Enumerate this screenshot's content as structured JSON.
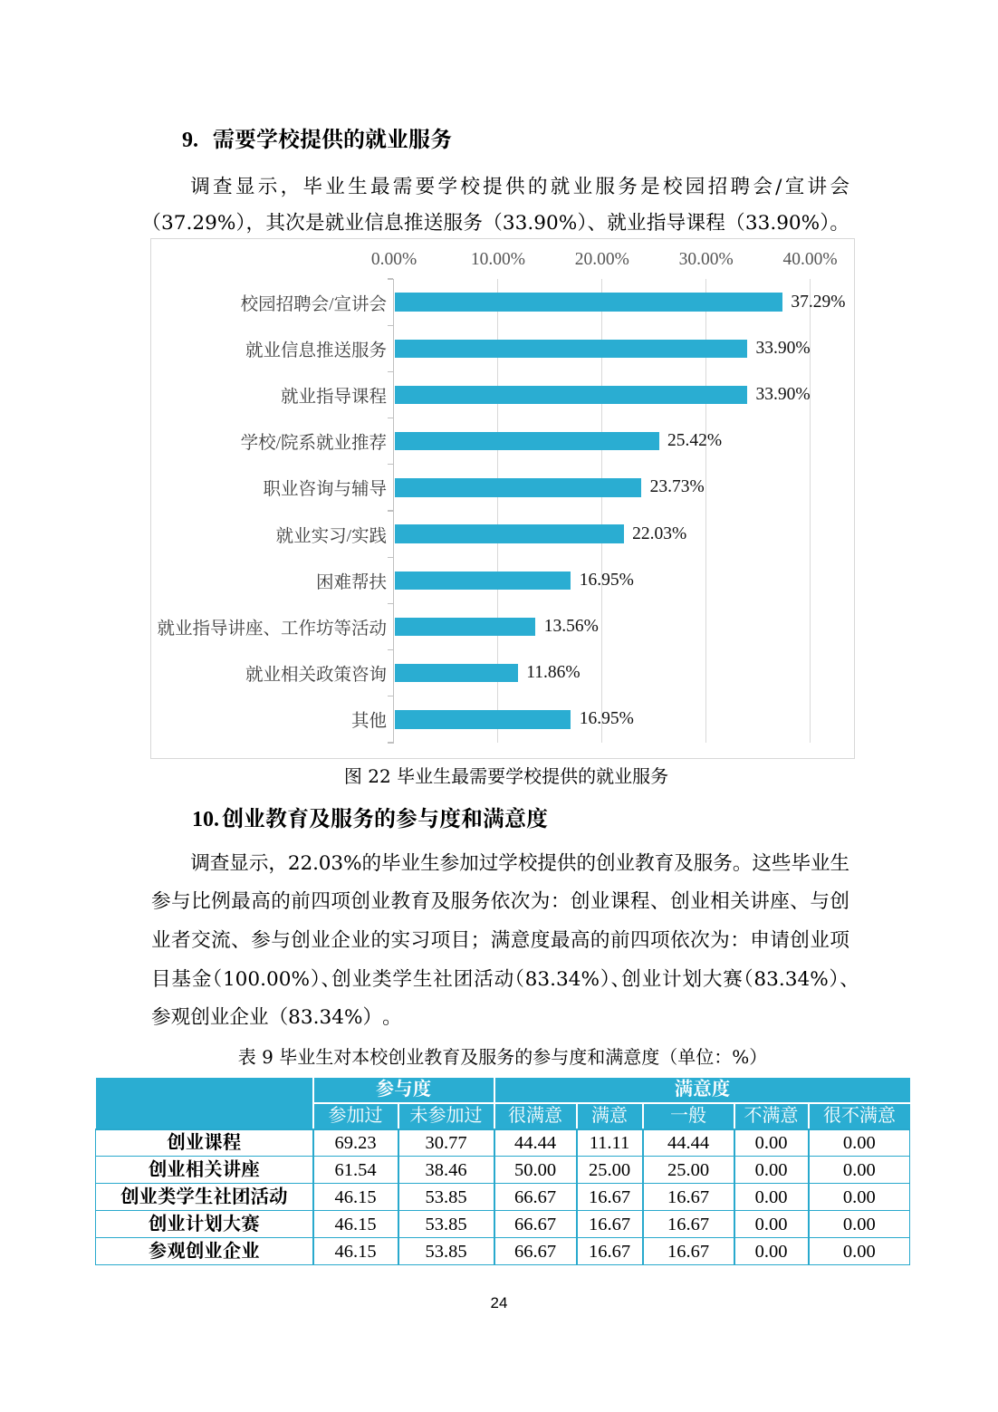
{
  "page": {
    "number": "24"
  },
  "accent_color": "#2aadd2",
  "section9": {
    "number": "9.",
    "title": "需要学校提供的就业服务",
    "paragraph_lines": [
      "调查显示，毕业生最需要学校提供的就业服务是校园招聘会/宣讲会",
      "（37.29%），其次是就业信息推送服务（33.90%）、就业指导课程（33.90%）。"
    ]
  },
  "figure_caption": "图 22 毕业生最需要学校提供的就业服务",
  "section10": {
    "number": "10.",
    "title": "创业教育及服务的参与度和满意度",
    "paragraph_lines": [
      "调查显示，22.03%的毕业生参加过学校提供的创业教育及服务。这些毕业生",
      "参与比例最高的前四项创业教育及服务依次为：创业课程、创业相关讲座、与创",
      "业者交流、参与创业企业的实习项目；满意度最高的前四项依次为：申请创业项",
      "目基金（100.00%）、创业类学生社团活动（83.34%）、创业计划大赛（83.34%）、",
      "参观创业企业（83.34%）。"
    ]
  },
  "table_caption": "表 9 毕业生对本校创业教育及服务的参与度和满意度（单位：%）",
  "chart_data": {
    "type": "bar",
    "orientation": "horizontal",
    "categories": [
      "校园招聘会/宣讲会",
      "就业信息推送服务",
      "就业指导课程",
      "学校/院系就业推荐",
      "职业咨询与辅导",
      "就业实习/实践",
      "困难帮扶",
      "就业指导讲座、工作坊等活动",
      "就业相关政策咨询",
      "其他"
    ],
    "values": [
      37.29,
      33.9,
      33.9,
      25.42,
      23.73,
      22.03,
      16.95,
      13.56,
      11.86,
      16.95
    ],
    "value_labels": [
      "37.29%",
      "33.90%",
      "33.90%",
      "25.42%",
      "23.73%",
      "22.03%",
      "16.95%",
      "13.56%",
      "11.86%",
      "16.95%"
    ],
    "x_ticks": [
      "0.00%",
      "10.00%",
      "20.00%",
      "30.00%",
      "40.00%"
    ],
    "xlim": [
      0,
      40
    ],
    "bar_color": "#2aadd2",
    "grid": true,
    "legend": false,
    "title": "",
    "xlabel": "",
    "ylabel": ""
  },
  "table": {
    "header_color": "#2aadd2",
    "group_headers": [
      {
        "label": "参与度",
        "span": 2
      },
      {
        "label": "满意度",
        "span": 5
      }
    ],
    "sub_headers": [
      "参加过",
      "未参加过",
      "很满意",
      "满意",
      "一般",
      "不满意",
      "很不满意"
    ],
    "rows": [
      {
        "label": "创业课程",
        "values": [
          "69.23",
          "30.77",
          "44.44",
          "11.11",
          "44.44",
          "0.00",
          "0.00"
        ]
      },
      {
        "label": "创业相关讲座",
        "values": [
          "61.54",
          "38.46",
          "50.00",
          "25.00",
          "25.00",
          "0.00",
          "0.00"
        ]
      },
      {
        "label": "创业类学生社团活动",
        "values": [
          "46.15",
          "53.85",
          "66.67",
          "16.67",
          "16.67",
          "0.00",
          "0.00"
        ]
      },
      {
        "label": "创业计划大赛",
        "values": [
          "46.15",
          "53.85",
          "66.67",
          "16.67",
          "16.67",
          "0.00",
          "0.00"
        ]
      },
      {
        "label": "参观创业企业",
        "values": [
          "46.15",
          "53.85",
          "66.67",
          "16.67",
          "16.67",
          "0.00",
          "0.00"
        ]
      }
    ]
  }
}
